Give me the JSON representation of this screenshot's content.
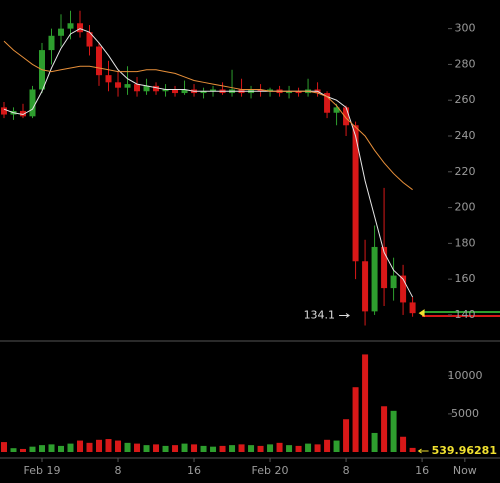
{
  "chart_data": [
    {
      "type": "candlestick",
      "x": [
        -4,
        -3,
        -2,
        -1,
        0,
        1,
        2,
        3,
        4,
        5,
        6,
        7,
        8,
        9,
        10,
        11,
        12,
        13,
        14,
        15,
        16,
        17,
        18,
        19,
        20,
        21,
        22,
        23,
        24,
        25,
        26,
        27,
        28,
        29,
        30,
        31,
        32,
        33,
        34,
        35,
        36,
        37,
        38,
        39
      ],
      "open": [
        256,
        252,
        254,
        251,
        266,
        288,
        296,
        300,
        303,
        298,
        290,
        274,
        270,
        267,
        269,
        265,
        268,
        265,
        266,
        264,
        266,
        264,
        265,
        266,
        264,
        266,
        264,
        266,
        265,
        266,
        264,
        265,
        264,
        266,
        264,
        253,
        256,
        246,
        170,
        142,
        178,
        155,
        162,
        147
      ],
      "high": [
        259,
        256,
        258,
        268,
        292,
        300,
        308,
        310,
        310,
        302,
        292,
        282,
        276,
        279,
        273,
        272,
        270,
        269,
        268,
        271,
        269,
        267,
        268,
        270,
        277,
        272,
        268,
        269,
        267,
        268,
        268,
        267,
        272,
        270,
        265,
        258,
        257,
        248,
        182,
        190,
        211,
        172,
        168,
        150
      ],
      "low": [
        250,
        249,
        250,
        250,
        264,
        280,
        290,
        294,
        295,
        285,
        268,
        265,
        262,
        263,
        262,
        263,
        263,
        262,
        262,
        263,
        262,
        261,
        262,
        263,
        262,
        262,
        261,
        262,
        262,
        262,
        261,
        262,
        262,
        262,
        250,
        246,
        240,
        160,
        134.1,
        140,
        145,
        148,
        140,
        139
      ],
      "close": [
        252,
        254,
        251,
        266,
        288,
        296,
        300,
        303,
        298,
        290,
        274,
        270,
        267,
        269,
        265,
        268,
        265,
        266,
        264,
        266,
        264,
        265,
        266,
        264,
        266,
        264,
        266,
        265,
        266,
        264,
        265,
        264,
        266,
        264,
        253,
        256,
        246,
        170,
        142,
        178,
        155,
        162,
        147,
        141
      ],
      "up_color": "#2e9e2e",
      "down_color": "#d81818",
      "moving_averages": [
        {
          "color": "#e6e6e6",
          "values": [
            255,
            253,
            252,
            255,
            265,
            278,
            289,
            297,
            300,
            298,
            292,
            285,
            277,
            272,
            269,
            268,
            267,
            266,
            266,
            266,
            265,
            265,
            265,
            265,
            265,
            265,
            265,
            265,
            265,
            265,
            265,
            265,
            265,
            265,
            262,
            260,
            256,
            240,
            215,
            195,
            175,
            165,
            160,
            150
          ]
        },
        {
          "color": "#e8903a",
          "values": [
            293,
            288,
            284,
            280,
            277,
            276,
            277,
            278,
            279,
            279,
            278,
            277,
            276,
            276,
            276,
            277,
            277,
            276,
            275,
            273,
            271,
            270,
            269,
            268,
            267,
            266,
            266,
            266,
            265,
            265,
            265,
            265,
            265,
            264,
            262,
            257,
            250,
            245,
            240,
            232,
            225,
            219,
            214,
            210
          ]
        }
      ],
      "low_marker_index": 38,
      "xlim": [
        -4.42,
        48.2
      ],
      "ylim": [
        126,
        316
      ],
      "yticks": [
        140,
        160,
        180,
        200,
        220,
        240,
        260,
        280,
        300
      ],
      "xticks": [
        {
          "value": 0,
          "label": "Feb 19"
        },
        8,
        16,
        {
          "value": 24,
          "label": "Feb 20"
        },
        {
          "value": 32,
          "label": "8"
        },
        {
          "value": 40,
          "label": "16"
        },
        {
          "value": 44.5,
          "label": "Now"
        }
      ]
    },
    {
      "type": "bar",
      "values": [
        1300,
        500,
        400,
        700,
        900,
        1000,
        800,
        1100,
        1500,
        1200,
        1600,
        1700,
        1500,
        1200,
        1100,
        900,
        1000,
        800,
        900,
        1100,
        1000,
        800,
        700,
        800,
        900,
        1000,
        900,
        800,
        1000,
        1200,
        900,
        800,
        1100,
        1000,
        1600,
        1500,
        4300,
        8500,
        12800,
        2500,
        6000,
        5400,
        2000,
        539.96281
      ],
      "ylim": [
        0,
        14300
      ],
      "yticks": [
        5000,
        10000
      ]
    }
  ]
}
